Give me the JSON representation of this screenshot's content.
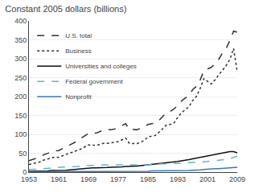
{
  "chart_data": {
    "type": "line",
    "title": "Constant 2005 dollars (billions)",
    "x": [
      1953,
      1954,
      1955,
      1956,
      1957,
      1958,
      1959,
      1960,
      1961,
      1962,
      1963,
      1964,
      1965,
      1966,
      1967,
      1968,
      1969,
      1970,
      1971,
      1972,
      1973,
      1974,
      1975,
      1976,
      1977,
      1978,
      1979,
      1980,
      1981,
      1982,
      1983,
      1984,
      1985,
      1986,
      1987,
      1988,
      1989,
      1990,
      1991,
      1992,
      1993,
      1994,
      1995,
      1996,
      1997,
      1998,
      1999,
      2000,
      2001,
      2002,
      2003,
      2004,
      2005,
      2006,
      2007,
      2008,
      2009
    ],
    "series": [
      {
        "name": "U.S. total",
        "color": "#333333",
        "line_style": "dashed",
        "values": [
          30,
          33,
          36,
          40,
          46,
          49,
          53,
          56,
          57,
          62,
          67,
          72,
          76,
          82,
          90,
          96,
          102,
          104,
          103,
          107,
          112,
          112,
          112,
          114,
          118,
          123,
          128,
          112,
          113,
          112,
          116,
          120,
          126,
          128,
          130,
          137,
          148,
          158,
          161,
          167,
          177,
          188,
          196,
          202,
          218,
          227,
          243,
          268,
          273,
          277,
          287,
          298,
          315,
          327,
          348,
          373,
          370
        ]
      },
      {
        "name": "Business",
        "color": "#333333",
        "line_style": "dotted",
        "values": [
          20,
          22,
          24,
          27,
          32,
          34,
          37,
          40,
          39,
          43,
          47,
          51,
          53,
          58,
          61,
          66,
          72,
          72,
          70,
          73,
          76,
          76,
          77,
          79,
          81,
          85,
          90,
          76,
          76,
          75,
          79,
          84,
          93,
          95,
          97,
          106,
          115,
          125,
          126,
          130,
          145,
          157,
          165,
          173,
          189,
          200,
          221,
          247,
          240,
          233,
          244,
          256,
          268,
          282,
          298,
          327,
          265
        ]
      },
      {
        "name": "Universities and colleges",
        "color": "#111111",
        "line_style": "solid",
        "values": [
          2,
          2,
          2,
          3,
          3,
          3,
          4,
          4,
          4,
          5,
          5,
          6,
          7,
          8,
          9,
          10,
          10,
          11,
          11,
          11,
          12,
          12,
          13,
          13,
          14,
          14,
          15,
          15,
          16,
          16,
          17,
          18,
          19,
          20,
          21,
          22,
          23,
          24,
          25,
          27,
          28,
          30,
          31,
          33,
          35,
          37,
          39,
          40,
          42,
          44,
          47,
          49,
          51,
          53,
          54,
          54,
          51
        ]
      },
      {
        "name": "Federal government",
        "color": "#5ab8cc",
        "line_style": "dashed",
        "values": [
          7,
          7,
          7,
          8,
          9,
          10,
          10,
          11,
          12,
          13,
          14,
          14,
          14,
          15,
          17,
          17,
          17,
          18,
          18,
          18,
          19,
          19,
          19,
          19,
          20,
          20,
          20,
          19,
          19,
          19,
          18,
          18,
          19,
          20,
          21,
          22,
          22,
          22,
          23,
          23,
          23,
          23,
          24,
          25,
          26,
          27,
          27,
          27,
          28,
          29,
          30,
          31,
          32,
          33,
          35,
          39,
          42
        ]
      },
      {
        "name": "Nonprofit",
        "color": "#3377cc",
        "line_style": "solid",
        "values": [
          1,
          1,
          1,
          1,
          1,
          1,
          1,
          1,
          1,
          1,
          1,
          1,
          1,
          1,
          1,
          2,
          2,
          2,
          2,
          2,
          2,
          2,
          2,
          2,
          2,
          2,
          2,
          2,
          2,
          2,
          2,
          2,
          2,
          3,
          3,
          3,
          3,
          3,
          3,
          3,
          3,
          4,
          4,
          4,
          5,
          5,
          6,
          7,
          8,
          8,
          9,
          9,
          10,
          10,
          11,
          12,
          13
        ]
      }
    ],
    "xlim": [
      1953,
      2009
    ],
    "xticks": [
      1953,
      1961,
      1969,
      1977,
      1985,
      1993,
      2001,
      2009
    ],
    "ylim": [
      0,
      400
    ],
    "yticks": [
      0,
      50,
      100,
      150,
      200,
      250,
      300,
      350,
      400
    ],
    "grid": "y",
    "legend": "upper left"
  }
}
